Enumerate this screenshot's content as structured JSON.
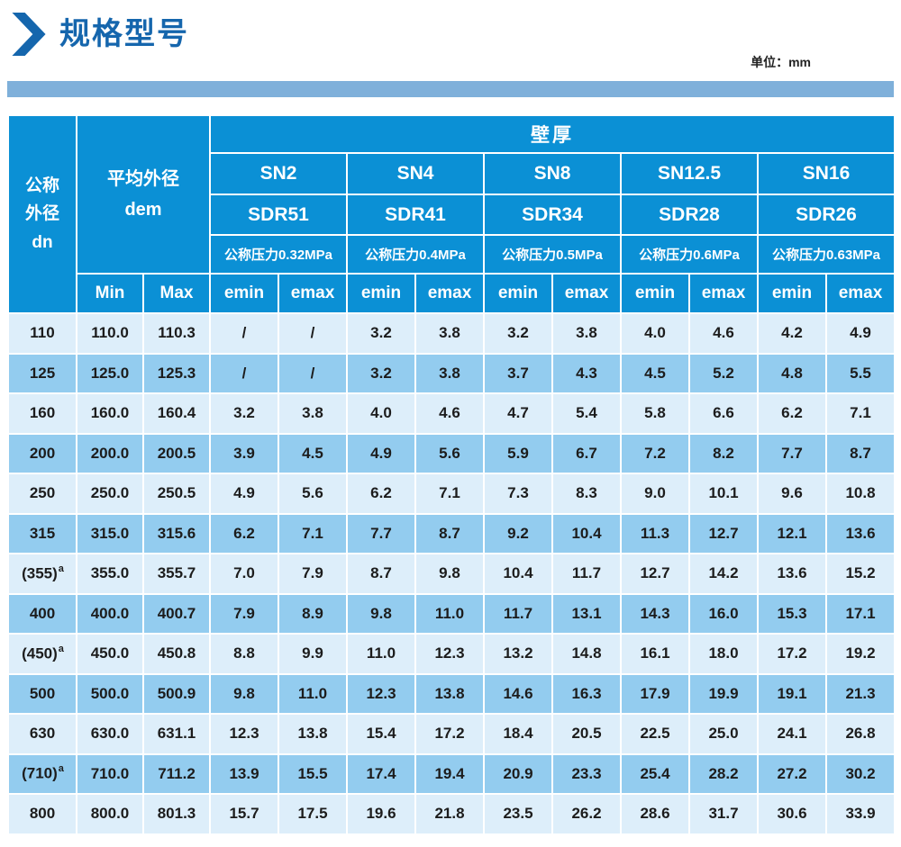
{
  "page": {
    "title": "规格型号",
    "unit_label": "单位：mm"
  },
  "colors": {
    "header_blue": "#0b90d5",
    "row_light": "#ddeefa",
    "row_medium": "#93ccef",
    "bar_blue": "#7fb0da",
    "title_blue": "#1566ad",
    "text_dark": "#1c1c1c"
  },
  "table": {
    "header": {
      "dn_lines": [
        "公称",
        "外径",
        "dn"
      ],
      "dem_lines": [
        "平均外径",
        "dem"
      ],
      "wall_thickness": "壁厚",
      "min_label": "Min",
      "max_label": "Max",
      "emin_label": "emin",
      "emax_label": "emax",
      "groups": [
        {
          "sn": "SN2",
          "sdr": "SDR51",
          "pressure": "公称压力0.32MPa"
        },
        {
          "sn": "SN4",
          "sdr": "SDR41",
          "pressure": "公称压力0.4MPa"
        },
        {
          "sn": "SN8",
          "sdr": "SDR34",
          "pressure": "公称压力0.5MPa"
        },
        {
          "sn": "SN12.5",
          "sdr": "SDR28",
          "pressure": "公称压力0.6MPa"
        },
        {
          "sn": "SN16",
          "sdr": "SDR26",
          "pressure": "公称压力0.63MPa"
        }
      ]
    },
    "rows": [
      {
        "dn": "110",
        "sup": "",
        "min": "110.0",
        "max": "110.3",
        "values": [
          "/",
          "/",
          "3.2",
          "3.8",
          "3.2",
          "3.8",
          "4.0",
          "4.6",
          "4.2",
          "4.9"
        ]
      },
      {
        "dn": "125",
        "sup": "",
        "min": "125.0",
        "max": "125.3",
        "values": [
          "/",
          "/",
          "3.2",
          "3.8",
          "3.7",
          "4.3",
          "4.5",
          "5.2",
          "4.8",
          "5.5"
        ]
      },
      {
        "dn": "160",
        "sup": "",
        "min": "160.0",
        "max": "160.4",
        "values": [
          "3.2",
          "3.8",
          "4.0",
          "4.6",
          "4.7",
          "5.4",
          "5.8",
          "6.6",
          "6.2",
          "7.1"
        ]
      },
      {
        "dn": "200",
        "sup": "",
        "min": "200.0",
        "max": "200.5",
        "values": [
          "3.9",
          "4.5",
          "4.9",
          "5.6",
          "5.9",
          "6.7",
          "7.2",
          "8.2",
          "7.7",
          "8.7"
        ]
      },
      {
        "dn": "250",
        "sup": "",
        "min": "250.0",
        "max": "250.5",
        "values": [
          "4.9",
          "5.6",
          "6.2",
          "7.1",
          "7.3",
          "8.3",
          "9.0",
          "10.1",
          "9.6",
          "10.8"
        ]
      },
      {
        "dn": "315",
        "sup": "",
        "min": "315.0",
        "max": "315.6",
        "values": [
          "6.2",
          "7.1",
          "7.7",
          "8.7",
          "9.2",
          "10.4",
          "11.3",
          "12.7",
          "12.1",
          "13.6"
        ]
      },
      {
        "dn": "(355)",
        "sup": "a",
        "min": "355.0",
        "max": "355.7",
        "values": [
          "7.0",
          "7.9",
          "8.7",
          "9.8",
          "10.4",
          "11.7",
          "12.7",
          "14.2",
          "13.6",
          "15.2"
        ]
      },
      {
        "dn": "400",
        "sup": "",
        "min": "400.0",
        "max": "400.7",
        "values": [
          "7.9",
          "8.9",
          "9.8",
          "11.0",
          "11.7",
          "13.1",
          "14.3",
          "16.0",
          "15.3",
          "17.1"
        ]
      },
      {
        "dn": "(450)",
        "sup": "a",
        "min": "450.0",
        "max": "450.8",
        "values": [
          "8.8",
          "9.9",
          "11.0",
          "12.3",
          "13.2",
          "14.8",
          "16.1",
          "18.0",
          "17.2",
          "19.2"
        ]
      },
      {
        "dn": "500",
        "sup": "",
        "min": "500.0",
        "max": "500.9",
        "values": [
          "9.8",
          "11.0",
          "12.3",
          "13.8",
          "14.6",
          "16.3",
          "17.9",
          "19.9",
          "19.1",
          "21.3"
        ]
      },
      {
        "dn": "630",
        "sup": "",
        "min": "630.0",
        "max": "631.1",
        "values": [
          "12.3",
          "13.8",
          "15.4",
          "17.2",
          "18.4",
          "20.5",
          "22.5",
          "25.0",
          "24.1",
          "26.8"
        ]
      },
      {
        "dn": "(710)",
        "sup": "a",
        "min": "710.0",
        "max": "711.2",
        "values": [
          "13.9",
          "15.5",
          "17.4",
          "19.4",
          "20.9",
          "23.3",
          "25.4",
          "28.2",
          "27.2",
          "30.2"
        ]
      },
      {
        "dn": "800",
        "sup": "",
        "min": "800.0",
        "max": "801.3",
        "values": [
          "15.7",
          "17.5",
          "19.6",
          "21.8",
          "23.5",
          "26.2",
          "28.6",
          "31.7",
          "30.6",
          "33.9"
        ]
      }
    ]
  }
}
